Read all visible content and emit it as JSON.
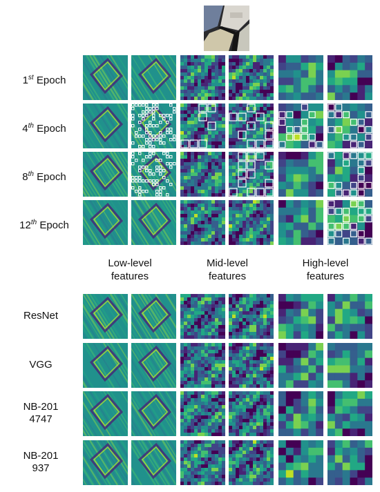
{
  "input_image_label": "",
  "training_rows": [
    {
      "ordinal": "1",
      "suffix": "st",
      "label": "Epoch",
      "highlight": [
        0,
        0,
        0,
        0,
        0,
        0
      ]
    },
    {
      "ordinal": "4",
      "suffix": "th",
      "label": "Epoch",
      "highlight": [
        0,
        1,
        1,
        1,
        1,
        1
      ]
    },
    {
      "ordinal": "8",
      "suffix": "th",
      "label": "Epoch",
      "highlight": [
        0,
        1,
        0,
        1,
        0,
        1
      ]
    },
    {
      "ordinal": "12",
      "suffix": "th",
      "label": "Epoch",
      "highlight": [
        0,
        0,
        0,
        0,
        0,
        1
      ]
    }
  ],
  "feature_groups": [
    {
      "line1": "Low-level",
      "line2": "features"
    },
    {
      "line1": "Mid-level",
      "line2": "features"
    },
    {
      "line1": "High-level",
      "line2": "features"
    }
  ],
  "model_rows": [
    {
      "line1": "ResNet",
      "line2": ""
    },
    {
      "line1": "VGG",
      "line2": ""
    },
    {
      "line1": "NB-201",
      "line2": "4747"
    },
    {
      "line1": "NB-201",
      "line2": "937"
    }
  ],
  "colors": {
    "viridis": [
      "#440154",
      "#482475",
      "#414487",
      "#355f8d",
      "#2a788e",
      "#21918c",
      "#22a884",
      "#44bf70",
      "#7ad151",
      "#bddf26",
      "#fde725"
    ],
    "highlight_outline": "#ffffff"
  }
}
